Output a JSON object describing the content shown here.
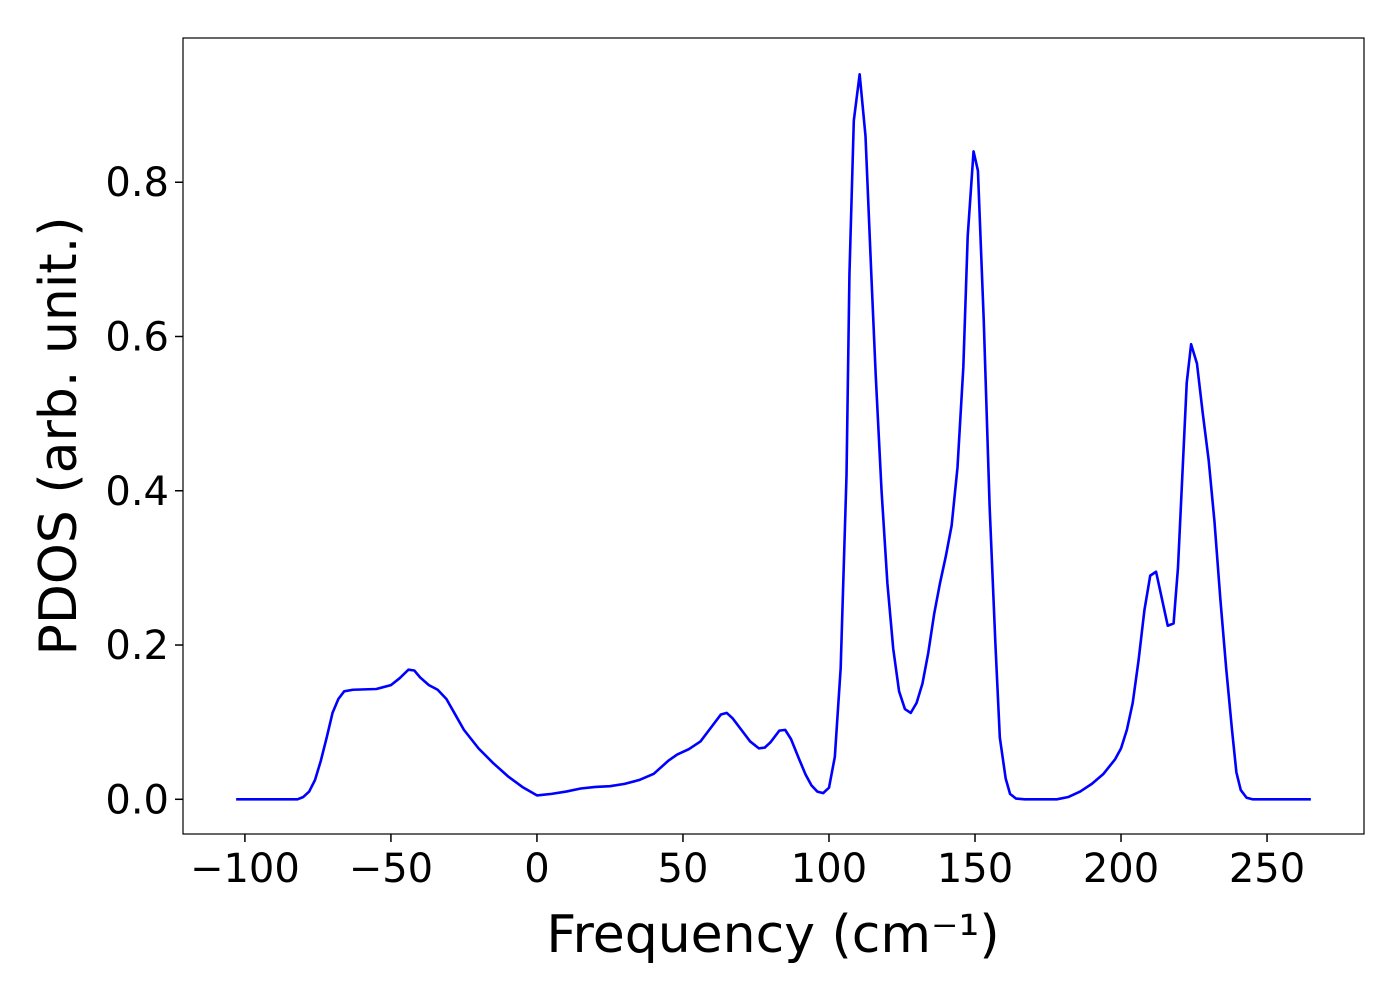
{
  "chart_data": {
    "type": "line",
    "xlabel": "Frequency (cm⁻¹)",
    "ylabel": "PDOS (arb. unit.)",
    "xlim": [
      -121.2,
      283.2
    ],
    "ylim": [
      -0.045,
      0.987
    ],
    "xticks": [
      {
        "value": -100,
        "label": "−100"
      },
      {
        "value": -50,
        "label": "−50"
      },
      0,
      50,
      100,
      150,
      200,
      250
    ],
    "yticks": [
      {
        "value": 0,
        "label": "0.0"
      },
      0.2,
      0.4,
      0.6,
      0.8
    ],
    "series": [
      {
        "color": "#0000ff",
        "x": [
          -103,
          -82,
          -80,
          -78,
          -76,
          -74,
          -72,
          -70,
          -68,
          -66,
          -63,
          -55,
          -50,
          -47,
          -44,
          -42,
          -40,
          -37,
          -34,
          -31,
          -28,
          -25,
          -20,
          -15,
          -10,
          -5,
          0,
          5,
          10,
          15,
          20,
          25,
          30,
          35,
          40,
          45,
          48,
          52,
          56,
          60,
          63,
          65,
          67,
          70,
          73,
          76,
          78,
          80,
          83,
          85,
          87,
          90,
          92,
          94,
          96,
          98,
          100,
          102,
          104,
          106,
          107,
          108.5,
          110.5,
          112.5,
          114.5,
          116,
          118,
          120,
          122,
          124,
          126,
          128,
          130,
          132,
          134,
          136,
          138,
          140,
          142,
          144,
          146,
          147.5,
          149.5,
          151,
          153,
          155,
          157,
          158.5,
          160.5,
          162,
          164,
          167,
          178,
          182,
          186,
          190,
          194,
          198,
          200,
          202,
          204,
          206,
          208,
          210,
          212,
          214,
          216,
          218,
          219.5,
          221,
          222.5,
          224,
          226,
          228,
          230,
          232,
          234,
          236,
          238,
          239.5,
          241,
          243,
          245,
          265
        ],
        "values": [
          0,
          0,
          0.003,
          0.01,
          0.025,
          0.05,
          0.08,
          0.112,
          0.13,
          0.14,
          0.142,
          0.143,
          0.148,
          0.157,
          0.168,
          0.167,
          0.158,
          0.148,
          0.142,
          0.13,
          0.11,
          0.09,
          0.066,
          0.047,
          0.03,
          0.016,
          0.005,
          0.007,
          0.01,
          0.014,
          0.016,
          0.017,
          0.02,
          0.025,
          0.033,
          0.05,
          0.058,
          0.065,
          0.075,
          0.095,
          0.11,
          0.112,
          0.105,
          0.09,
          0.075,
          0.066,
          0.067,
          0.074,
          0.089,
          0.09,
          0.078,
          0.05,
          0.032,
          0.018,
          0.01,
          0.008,
          0.015,
          0.055,
          0.17,
          0.42,
          0.68,
          0.88,
          0.94,
          0.86,
          0.68,
          0.55,
          0.4,
          0.28,
          0.195,
          0.14,
          0.117,
          0.112,
          0.125,
          0.15,
          0.19,
          0.24,
          0.28,
          0.315,
          0.355,
          0.43,
          0.56,
          0.73,
          0.84,
          0.815,
          0.62,
          0.38,
          0.2,
          0.08,
          0.027,
          0.007,
          0.001,
          0,
          0,
          0.003,
          0.01,
          0.02,
          0.033,
          0.052,
          0.066,
          0.09,
          0.125,
          0.18,
          0.245,
          0.29,
          0.295,
          0.26,
          0.225,
          0.228,
          0.3,
          0.42,
          0.54,
          0.59,
          0.565,
          0.5,
          0.44,
          0.36,
          0.26,
          0.17,
          0.09,
          0.035,
          0.012,
          0.002,
          0,
          0
        ]
      }
    ]
  }
}
